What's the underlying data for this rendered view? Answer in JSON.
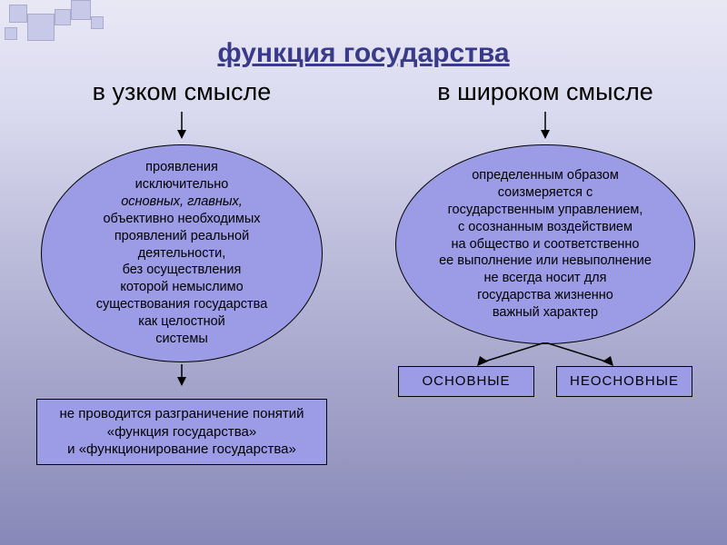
{
  "title": "функция государства",
  "left": {
    "subtitle": "в узком смысле",
    "ellipse": "проявления\nисключительно\n<i>основных, главных,</i>\nобъективно необходимых\nпроявлений реальной\nдеятельности,\nбез осуществления\nкоторой немыслимо\nсуществования государства\nкак целостной\nсистемы",
    "box": "не проводится разграничение понятий\n«функция государства»\nи «функционирование государства»"
  },
  "right": {
    "subtitle": "в широком смысле",
    "ellipse": "определенным образом\nсоизмеряется с\nгосударственным управлением,\nс осознанным воздействием\nна общество и соответственно\nее выполнение или невыполнение\nне всегда носит для\nгосударства жизненно\nважный характер",
    "box1": "ОСНОВНЫЕ",
    "box2": "НЕОСНОВНЫЕ"
  },
  "colors": {
    "ellipse_fill": "#9b9be6",
    "title_color": "#3a3a8a",
    "border": "#000000"
  }
}
